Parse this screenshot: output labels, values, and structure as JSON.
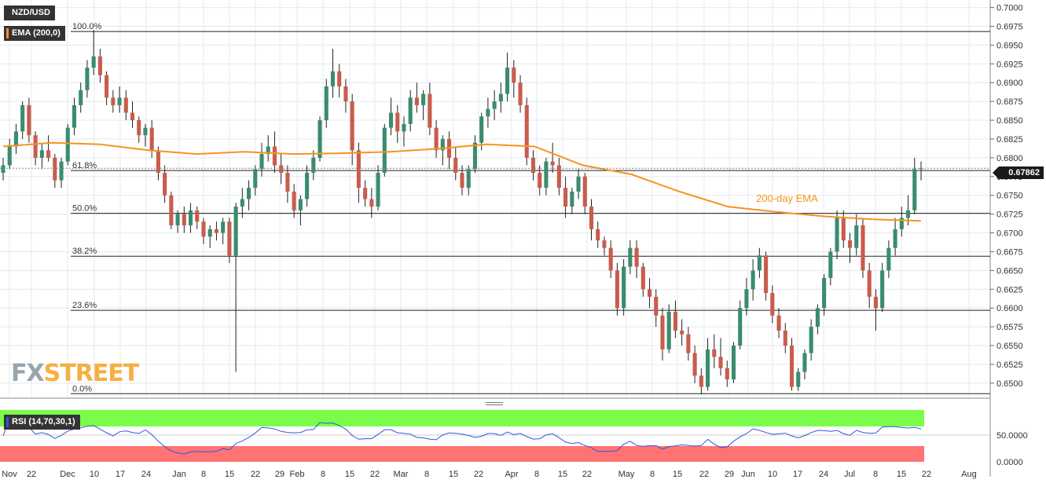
{
  "header": {
    "symbol": "NZD/USD",
    "indicator": "EMA (200,0)",
    "ema_color": "#f7931e"
  },
  "rsi_panel": {
    "label": "RSI (14,70,30,1)",
    "levels": [
      "50.0000",
      "0.0000"
    ],
    "line_color": "#3355dd",
    "overbought_color": "#7cfc4a",
    "oversold_color": "#ff7373"
  },
  "price_badge": "0.67862",
  "watermark": {
    "part1": "FX",
    "part2": "STREET"
  },
  "colors": {
    "up": "#3a8c6e",
    "down": "#c95c4c",
    "ema": "#f7931e",
    "grid": "#e5e8ee"
  },
  "chart_data": {
    "type": "candlestick",
    "instrument": "NZD/USD",
    "ylim": [
      0.648,
      0.701
    ],
    "y_ticks": [
      "0.7000",
      "0.6975",
      "0.6950",
      "0.6925",
      "0.6900",
      "0.6875",
      "0.6850",
      "0.6825",
      "0.6800",
      "0.6775",
      "0.6750",
      "0.6725",
      "0.6700",
      "0.6675",
      "0.6650",
      "0.6625",
      "0.6600",
      "0.6575",
      "0.6550",
      "0.6525",
      "0.6500"
    ],
    "x_ticks": [
      "Nov",
      "22",
      "Dec",
      "10",
      "17",
      "24",
      "Jan",
      "8",
      "15",
      "22",
      "29",
      "Feb",
      "8",
      "15",
      "22",
      "Mar",
      "8",
      "15",
      "22",
      "Apr",
      "8",
      "15",
      "22",
      "May",
      "8",
      "15",
      "22",
      "29",
      "Jun",
      "10",
      "17",
      "24",
      "Jul",
      "8",
      "15",
      "22",
      "Aug"
    ],
    "fibonacci": [
      {
        "label": "100.0%",
        "value": 0.6968
      },
      {
        "label": "61.8%",
        "value": 0.6783
      },
      {
        "label": "50.0%",
        "value": 0.6726
      },
      {
        "label": "38.2%",
        "value": 0.6669
      },
      {
        "label": "23.6%",
        "value": 0.6597
      },
      {
        "label": "0.0%",
        "value": 0.6486
      }
    ],
    "ema_label": "200-day EMA",
    "ema_200": [
      0.6815,
      0.682,
      0.6818,
      0.681,
      0.6805,
      0.6808,
      0.6805,
      0.6806,
      0.6808,
      0.6812,
      0.6818,
      0.6815,
      0.679,
      0.6778,
      0.6755,
      0.6735,
      0.6728,
      0.6722,
      0.6718,
      0.6716
    ],
    "candles": [
      [
        0.678,
        0.68,
        0.677,
        0.679
      ],
      [
        0.679,
        0.6825,
        0.6785,
        0.6815
      ],
      [
        0.6815,
        0.6845,
        0.6805,
        0.6835
      ],
      [
        0.6835,
        0.6875,
        0.6825,
        0.687
      ],
      [
        0.687,
        0.688,
        0.682,
        0.683
      ],
      [
        0.683,
        0.6835,
        0.679,
        0.68
      ],
      [
        0.68,
        0.682,
        0.6785,
        0.681
      ],
      [
        0.681,
        0.683,
        0.6795,
        0.68
      ],
      [
        0.68,
        0.6805,
        0.676,
        0.677
      ],
      [
        0.677,
        0.68,
        0.676,
        0.6795
      ],
      [
        0.6795,
        0.6845,
        0.679,
        0.684
      ],
      [
        0.684,
        0.688,
        0.683,
        0.687
      ],
      [
        0.687,
        0.69,
        0.686,
        0.689
      ],
      [
        0.689,
        0.693,
        0.688,
        0.692
      ],
      [
        0.692,
        0.697,
        0.691,
        0.6935
      ],
      [
        0.6935,
        0.6945,
        0.69,
        0.691
      ],
      [
        0.691,
        0.6915,
        0.687,
        0.688
      ],
      [
        0.688,
        0.689,
        0.686,
        0.687
      ],
      [
        0.687,
        0.6895,
        0.686,
        0.688
      ],
      [
        0.688,
        0.689,
        0.685,
        0.686
      ],
      [
        0.686,
        0.6875,
        0.684,
        0.685
      ],
      [
        0.685,
        0.6855,
        0.682,
        0.683
      ],
      [
        0.683,
        0.6845,
        0.6815,
        0.684
      ],
      [
        0.684,
        0.685,
        0.68,
        0.681
      ],
      [
        0.681,
        0.6815,
        0.677,
        0.678
      ],
      [
        0.678,
        0.679,
        0.674,
        0.675
      ],
      [
        0.675,
        0.6755,
        0.6705,
        0.671
      ],
      [
        0.671,
        0.673,
        0.67,
        0.6725
      ],
      [
        0.6725,
        0.6735,
        0.67,
        0.671
      ],
      [
        0.671,
        0.674,
        0.67,
        0.673
      ],
      [
        0.673,
        0.6735,
        0.6705,
        0.6715
      ],
      [
        0.6715,
        0.672,
        0.6685,
        0.6695
      ],
      [
        0.6695,
        0.671,
        0.668,
        0.6705
      ],
      [
        0.6705,
        0.6715,
        0.669,
        0.67
      ],
      [
        0.67,
        0.672,
        0.6685,
        0.6715
      ],
      [
        0.6715,
        0.672,
        0.666,
        0.667
      ],
      [
        0.667,
        0.674,
        0.6515,
        0.6735
      ],
      [
        0.6735,
        0.676,
        0.672,
        0.6745
      ],
      [
        0.6745,
        0.677,
        0.673,
        0.676
      ],
      [
        0.676,
        0.679,
        0.675,
        0.6785
      ],
      [
        0.6785,
        0.682,
        0.6775,
        0.6805
      ],
      [
        0.6805,
        0.683,
        0.6795,
        0.6815
      ],
      [
        0.6815,
        0.6835,
        0.678,
        0.679
      ],
      [
        0.679,
        0.6805,
        0.6765,
        0.678
      ],
      [
        0.678,
        0.679,
        0.674,
        0.6755
      ],
      [
        0.6755,
        0.6765,
        0.672,
        0.673
      ],
      [
        0.673,
        0.675,
        0.671,
        0.6745
      ],
      [
        0.6745,
        0.679,
        0.6735,
        0.678
      ],
      [
        0.678,
        0.681,
        0.677,
        0.68
      ],
      [
        0.68,
        0.6855,
        0.6795,
        0.685
      ],
      [
        0.685,
        0.6905,
        0.684,
        0.6895
      ],
      [
        0.6895,
        0.6945,
        0.688,
        0.6915
      ],
      [
        0.6915,
        0.6925,
        0.688,
        0.6895
      ],
      [
        0.6895,
        0.6905,
        0.686,
        0.6875
      ],
      [
        0.6875,
        0.6885,
        0.679,
        0.681
      ],
      [
        0.681,
        0.682,
        0.674,
        0.676
      ],
      [
        0.676,
        0.677,
        0.6735,
        0.6745
      ],
      [
        0.6745,
        0.676,
        0.672,
        0.6735
      ],
      [
        0.6735,
        0.679,
        0.673,
        0.678
      ],
      [
        0.678,
        0.6845,
        0.6775,
        0.684
      ],
      [
        0.684,
        0.688,
        0.683,
        0.686
      ],
      [
        0.686,
        0.687,
        0.682,
        0.6835
      ],
      [
        0.6835,
        0.6855,
        0.6815,
        0.6845
      ],
      [
        0.6845,
        0.689,
        0.6835,
        0.688
      ],
      [
        0.688,
        0.69,
        0.686,
        0.687
      ],
      [
        0.687,
        0.689,
        0.685,
        0.6885
      ],
      [
        0.6885,
        0.69,
        0.683,
        0.684
      ],
      [
        0.684,
        0.685,
        0.68,
        0.681
      ],
      [
        0.681,
        0.683,
        0.679,
        0.6825
      ],
      [
        0.6825,
        0.6835,
        0.6785,
        0.68
      ],
      [
        0.68,
        0.6815,
        0.677,
        0.678
      ],
      [
        0.678,
        0.679,
        0.675,
        0.676
      ],
      [
        0.676,
        0.679,
        0.675,
        0.6785
      ],
      [
        0.6785,
        0.683,
        0.678,
        0.682
      ],
      [
        0.682,
        0.686,
        0.681,
        0.6855
      ],
      [
        0.6855,
        0.688,
        0.684,
        0.6865
      ],
      [
        0.6865,
        0.689,
        0.685,
        0.6875
      ],
      [
        0.6875,
        0.69,
        0.686,
        0.6885
      ],
      [
        0.6885,
        0.694,
        0.6875,
        0.692
      ],
      [
        0.692,
        0.693,
        0.688,
        0.69
      ],
      [
        0.69,
        0.691,
        0.686,
        0.687
      ],
      [
        0.687,
        0.688,
        0.679,
        0.68
      ],
      [
        0.68,
        0.681,
        0.677,
        0.678
      ],
      [
        0.678,
        0.679,
        0.675,
        0.676
      ],
      [
        0.676,
        0.68,
        0.675,
        0.6795
      ],
      [
        0.6795,
        0.682,
        0.678,
        0.679
      ],
      [
        0.679,
        0.68,
        0.675,
        0.676
      ],
      [
        0.676,
        0.6775,
        0.672,
        0.6735
      ],
      [
        0.6735,
        0.676,
        0.6725,
        0.6755
      ],
      [
        0.6755,
        0.6785,
        0.6745,
        0.6775
      ],
      [
        0.6775,
        0.678,
        0.6725,
        0.6735
      ],
      [
        0.6735,
        0.6745,
        0.669,
        0.6705
      ],
      [
        0.6705,
        0.6715,
        0.668,
        0.669
      ],
      [
        0.669,
        0.6695,
        0.667,
        0.668
      ],
      [
        0.668,
        0.669,
        0.664,
        0.665
      ],
      [
        0.665,
        0.666,
        0.659,
        0.66
      ],
      [
        0.66,
        0.6665,
        0.659,
        0.6655
      ],
      [
        0.6655,
        0.669,
        0.6645,
        0.668
      ],
      [
        0.668,
        0.669,
        0.664,
        0.6655
      ],
      [
        0.6655,
        0.666,
        0.6615,
        0.6625
      ],
      [
        0.6625,
        0.664,
        0.66,
        0.6615
      ],
      [
        0.6615,
        0.6625,
        0.6575,
        0.659
      ],
      [
        0.659,
        0.66,
        0.653,
        0.6545
      ],
      [
        0.6545,
        0.6605,
        0.654,
        0.6595
      ],
      [
        0.6595,
        0.661,
        0.656,
        0.657
      ],
      [
        0.657,
        0.6585,
        0.655,
        0.6565
      ],
      [
        0.6565,
        0.6575,
        0.653,
        0.654
      ],
      [
        0.654,
        0.655,
        0.65,
        0.651
      ],
      [
        0.651,
        0.652,
        0.6485,
        0.6495
      ],
      [
        0.6495,
        0.656,
        0.649,
        0.6545
      ],
      [
        0.6545,
        0.6565,
        0.652,
        0.6535
      ],
      [
        0.6535,
        0.656,
        0.651,
        0.652
      ],
      [
        0.652,
        0.653,
        0.6495,
        0.6505
      ],
      [
        0.6505,
        0.6555,
        0.65,
        0.655
      ],
      [
        0.655,
        0.661,
        0.6545,
        0.66
      ],
      [
        0.66,
        0.664,
        0.659,
        0.6625
      ],
      [
        0.6625,
        0.6665,
        0.661,
        0.665
      ],
      [
        0.665,
        0.668,
        0.664,
        0.667
      ],
      [
        0.667,
        0.6675,
        0.661,
        0.662
      ],
      [
        0.662,
        0.663,
        0.658,
        0.659
      ],
      [
        0.659,
        0.66,
        0.656,
        0.657
      ],
      [
        0.657,
        0.658,
        0.654,
        0.655
      ],
      [
        0.655,
        0.656,
        0.649,
        0.6495
      ],
      [
        0.6495,
        0.652,
        0.649,
        0.6515
      ],
      [
        0.6515,
        0.6545,
        0.6505,
        0.654
      ],
      [
        0.654,
        0.6585,
        0.653,
        0.6575
      ],
      [
        0.6575,
        0.6605,
        0.6565,
        0.66
      ],
      [
        0.66,
        0.6645,
        0.659,
        0.664
      ],
      [
        0.664,
        0.668,
        0.663,
        0.6675
      ],
      [
        0.6675,
        0.673,
        0.6665,
        0.672
      ],
      [
        0.672,
        0.673,
        0.668,
        0.669
      ],
      [
        0.669,
        0.67,
        0.666,
        0.668
      ],
      [
        0.668,
        0.6725,
        0.667,
        0.671
      ],
      [
        0.671,
        0.672,
        0.664,
        0.665
      ],
      [
        0.665,
        0.666,
        0.66,
        0.6615
      ],
      [
        0.6615,
        0.6625,
        0.657,
        0.66
      ],
      [
        0.66,
        0.666,
        0.6595,
        0.665
      ],
      [
        0.665,
        0.669,
        0.664,
        0.668
      ],
      [
        0.668,
        0.672,
        0.667,
        0.6705
      ],
      [
        0.6705,
        0.6735,
        0.6695,
        0.672
      ],
      [
        0.672,
        0.675,
        0.671,
        0.673
      ],
      [
        0.673,
        0.68,
        0.6725,
        0.6785
      ],
      [
        0.6785,
        0.6795,
        0.677,
        0.6786
      ]
    ]
  }
}
